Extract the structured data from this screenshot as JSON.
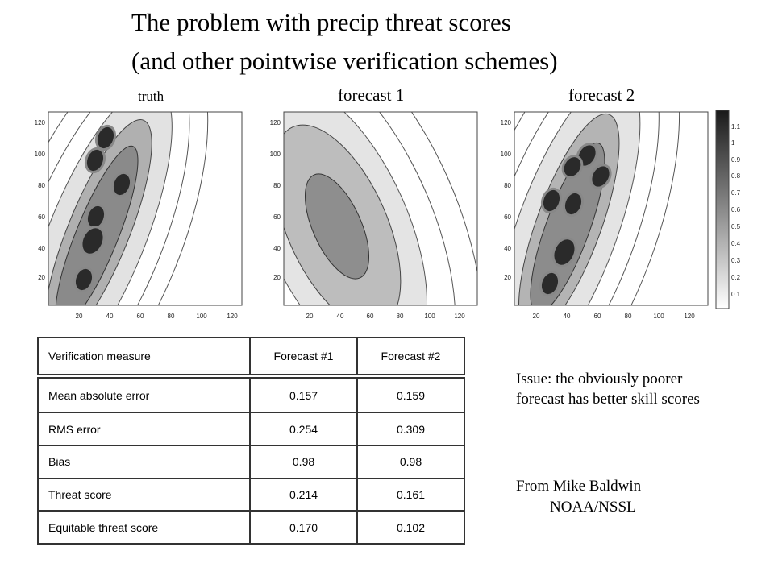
{
  "title_line1": "The problem with precip threat scores",
  "title_line2": "(and other pointwise verification schemes)",
  "plots": [
    {
      "label": "truth"
    },
    {
      "label": "forecast 1"
    },
    {
      "label": "forecast 2"
    }
  ],
  "axis_ticks": {
    "x": [
      "20",
      "40",
      "60",
      "80",
      "100",
      "120"
    ],
    "y": [
      "20",
      "40",
      "60",
      "80",
      "100",
      "120"
    ]
  },
  "colorbar_ticks": [
    "1.1",
    "1",
    "0.9",
    "0.8",
    "0.7",
    "0.6",
    "0.5",
    "0.4",
    "0.3",
    "0.2",
    "0.1"
  ],
  "table": {
    "headers": [
      "Verification measure",
      "Forecast #1",
      "Forecast #2"
    ],
    "rows": [
      [
        "Mean absolute error",
        "0.157",
        "0.159"
      ],
      [
        "RMS error",
        "0.254",
        "0.309"
      ],
      [
        "Bias",
        "0.98",
        "0.98"
      ],
      [
        "Threat score",
        "0.214",
        "0.161"
      ],
      [
        "Equitable threat score",
        "0.170",
        "0.102"
      ]
    ]
  },
  "issue_text": "Issue: the obviously poorer forecast has better skill scores",
  "credit_line1": "From Mike Baldwin",
  "credit_line2": "NOAA/NSSL"
}
